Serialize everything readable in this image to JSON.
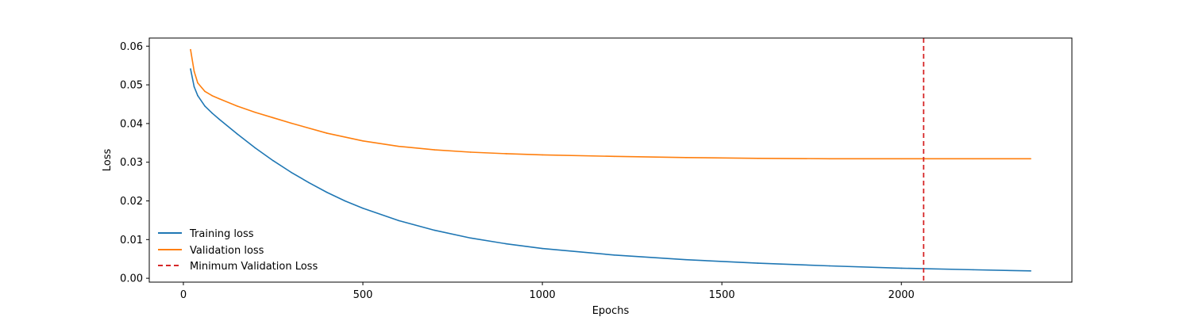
{
  "chart_data": {
    "type": "line",
    "title": "",
    "xlabel": "Epochs",
    "ylabel": "Loss",
    "xlim": [
      -95,
      2475
    ],
    "ylim": [
      -0.001,
      0.0621
    ],
    "xticks": [
      0,
      500,
      1000,
      1500,
      2000
    ],
    "xtick_labels": [
      "0",
      "500",
      "1000",
      "1500",
      "2000"
    ],
    "yticks": [
      0.0,
      0.01,
      0.02,
      0.03,
      0.04,
      0.05,
      0.06
    ],
    "ytick_labels": [
      "0.00",
      "0.01",
      "0.02",
      "0.03",
      "0.04",
      "0.05",
      "0.06"
    ],
    "grid": false,
    "legend_position": "lower-left",
    "series": [
      {
        "name": "Training loss",
        "color": "#1f77b4",
        "x": [
          20,
          30,
          40,
          60,
          80,
          100,
          150,
          200,
          250,
          300,
          350,
          400,
          450,
          500,
          600,
          700,
          800,
          900,
          1000,
          1200,
          1400,
          1600,
          1800,
          2000,
          2200,
          2360
        ],
        "y": [
          0.0541,
          0.0495,
          0.0472,
          0.0445,
          0.0427,
          0.0411,
          0.0373,
          0.0337,
          0.0304,
          0.0274,
          0.0247,
          0.0222,
          0.02,
          0.0181,
          0.0149,
          0.0124,
          0.0104,
          0.0089,
          0.0077,
          0.006,
          0.0048,
          0.0039,
          0.0032,
          0.0026,
          0.0022,
          0.0019
        ]
      },
      {
        "name": "Validation loss",
        "color": "#ff7f0e",
        "x": [
          20,
          30,
          40,
          60,
          80,
          100,
          150,
          200,
          250,
          300,
          400,
          500,
          600,
          700,
          800,
          900,
          1000,
          1200,
          1400,
          1600,
          1800,
          2000,
          2200,
          2360
        ],
        "y": [
          0.0591,
          0.0535,
          0.0505,
          0.0483,
          0.0472,
          0.0464,
          0.0445,
          0.0429,
          0.0415,
          0.0401,
          0.0375,
          0.0355,
          0.0341,
          0.0332,
          0.0326,
          0.0322,
          0.0319,
          0.0315,
          0.0312,
          0.031,
          0.0309,
          0.0309,
          0.0309,
          0.0309
        ]
      }
    ],
    "reference_lines": [
      {
        "name": "Minimum Validation Loss",
        "orientation": "vertical",
        "x": 2062,
        "color": "#d62728",
        "style": "dashed"
      }
    ]
  }
}
